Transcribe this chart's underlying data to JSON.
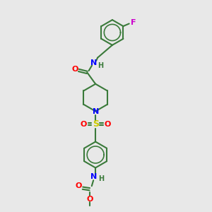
{
  "bg_color": "#e8e8e8",
  "bond_color": "#3a7a3a",
  "N_color": "#0000ff",
  "O_color": "#ff0000",
  "S_color": "#cccc00",
  "F_color": "#cc00cc",
  "lw": 1.5,
  "lw_inner": 1.2,
  "fs": 8,
  "fs_small": 7,
  "figsize": [
    3.0,
    3.0
  ],
  "dpi": 100,
  "xlim": [
    0,
    6
  ],
  "ylim": [
    0,
    10
  ]
}
